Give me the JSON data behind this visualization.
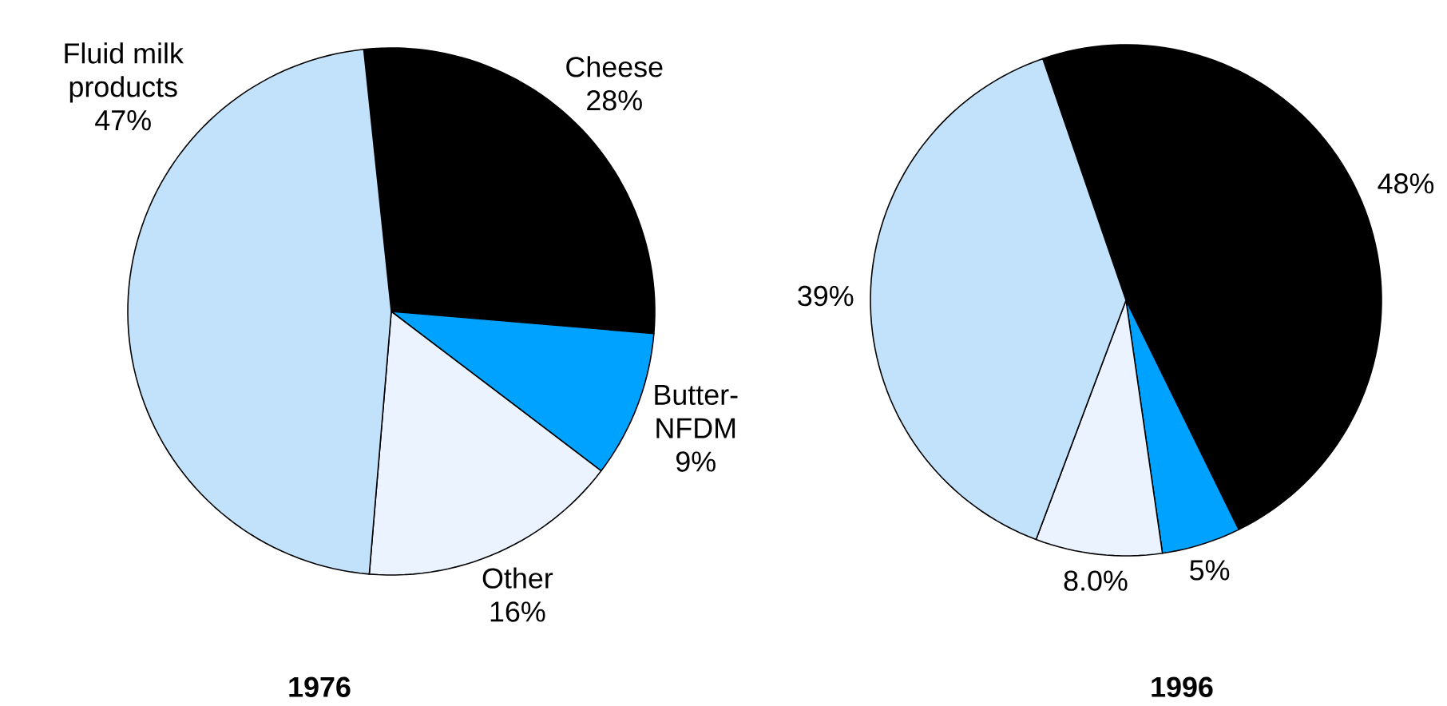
{
  "chart_data": [
    {
      "type": "pie",
      "title": "1976",
      "categories": [
        "Cheese",
        "Butter-NFDM",
        "Other",
        "Fluid milk products"
      ],
      "values": [
        28,
        9,
        16,
        47
      ],
      "value_labels": [
        "28%",
        "9%",
        "16%",
        "47%"
      ],
      "colors": [
        "#000000",
        "#00a2ff",
        "#eaf3ff",
        "#c2e2fc"
      ]
    },
    {
      "type": "pie",
      "title": "1996",
      "categories": [
        null,
        null,
        null,
        null
      ],
      "values": [
        48,
        5,
        8.0,
        39
      ],
      "value_labels": [
        "48%",
        "5%",
        "8.0%",
        "39%"
      ],
      "colors": [
        "#000000",
        "#00a2ff",
        "#eaf3ff",
        "#c2e2fc"
      ]
    }
  ]
}
